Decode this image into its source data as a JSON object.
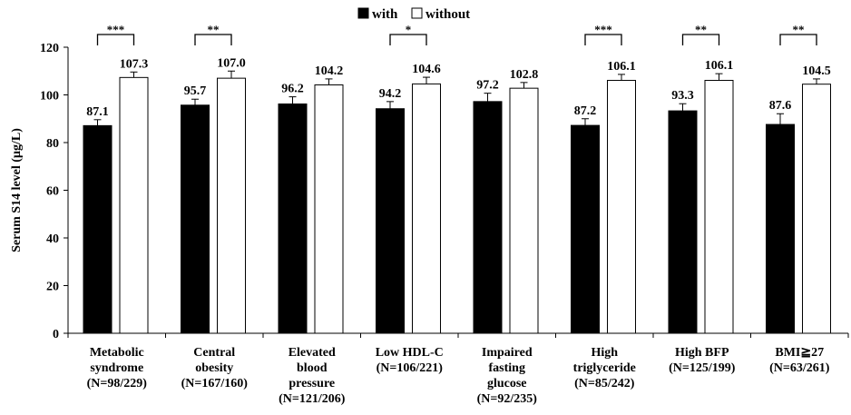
{
  "chart_data": {
    "type": "bar",
    "ylabel": "Serum S14 level (µg/L)",
    "ylim": [
      0,
      120
    ],
    "yticks": [
      0,
      20,
      40,
      60,
      80,
      100,
      120
    ],
    "legend": {
      "placement": "top-center"
    },
    "categories": [
      [
        "Metabolic",
        "syndrome",
        "(N=98/229)"
      ],
      [
        "Central",
        "obesity",
        "(N=167/160)"
      ],
      [
        "Elevated",
        "blood",
        "pressure",
        "(N=121/206)"
      ],
      [
        "Low HDL-C",
        "(N=106/221)"
      ],
      [
        "Impaired",
        "fasting",
        "glucose",
        "(N=92/235)"
      ],
      [
        "High",
        "triglyceride",
        "(N=85/242)"
      ],
      [
        "High BFP",
        "(N=125/199)"
      ],
      [
        "BMI≧27",
        "(N=63/261)"
      ]
    ],
    "series": [
      {
        "name": "with",
        "color": "#000000",
        "values": [
          87.1,
          95.7,
          96.2,
          94.2,
          97.2,
          87.2,
          93.3,
          87.6
        ],
        "labels": [
          "87.1",
          "95.7",
          "96.2",
          "94.2",
          "97.2",
          "87.2",
          "93.3",
          "87.6"
        ],
        "errors": [
          2.5,
          2.5,
          3.0,
          3.0,
          3.5,
          2.8,
          3.0,
          4.5
        ]
      },
      {
        "name": "without",
        "color": "#ffffff",
        "values": [
          107.3,
          107.0,
          104.2,
          104.6,
          102.8,
          106.1,
          106.1,
          104.5
        ],
        "labels": [
          "107.3",
          "107.0",
          "104.2",
          "104.6",
          "102.8",
          "106.1",
          "106.1",
          "104.5"
        ],
        "errors": [
          2.3,
          3.0,
          2.5,
          2.8,
          2.4,
          2.5,
          2.8,
          2.2
        ]
      }
    ],
    "significance": [
      "***",
      "**",
      "",
      "*",
      "",
      "***",
      "**",
      "**"
    ]
  }
}
